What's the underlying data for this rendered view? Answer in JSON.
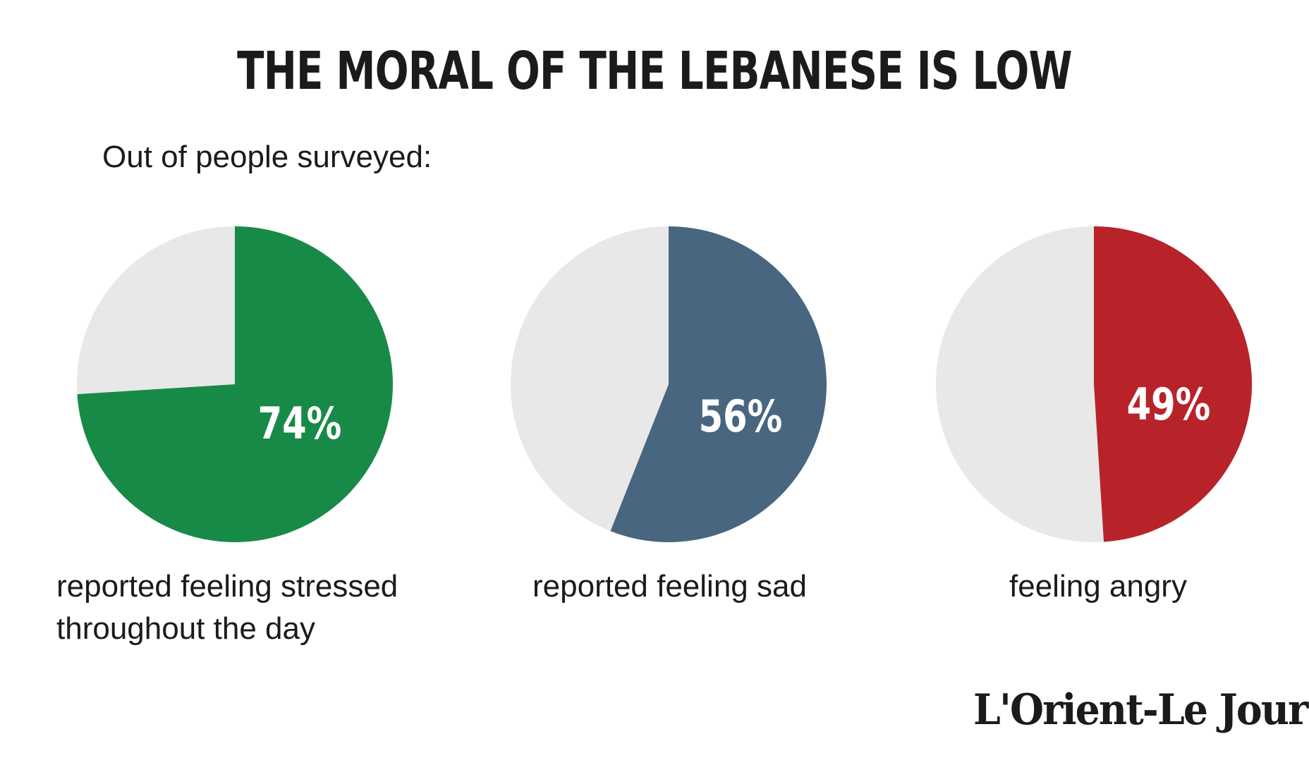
{
  "header": {
    "title": "THE MORAL OF THE LEBANESE IS LOW",
    "subtitle": "Out of people surveyed:"
  },
  "chart_data": [
    {
      "type": "pie",
      "value": 74,
      "label": "74%",
      "caption_lines": [
        "reported feeling stressed",
        "throughout the day"
      ],
      "color": "#188a47",
      "remainder_color": "#e8e8e8"
    },
    {
      "type": "pie",
      "value": 56,
      "label": "56%",
      "caption_lines": [
        "reported feeling  sad"
      ],
      "color": "#48667f",
      "remainder_color": "#e8e8e8"
    },
    {
      "type": "pie",
      "value": 49,
      "label": "49%",
      "caption_lines": [
        "feeling angry"
      ],
      "color": "#b8232a",
      "remainder_color": "#e8e8e8"
    }
  ],
  "branding": {
    "logo": "L'Orient-Le Jour"
  }
}
